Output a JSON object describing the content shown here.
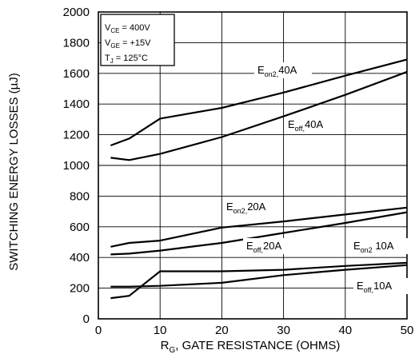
{
  "chart_data": {
    "type": "line",
    "title": "",
    "xlabel": {
      "prefix": "R",
      "sub": "G",
      "rest": ", GATE RESISTANCE (OHMS)"
    },
    "ylabel": "SWITCHING ENERGY LOSSES (µJ)",
    "xlim": [
      0,
      50
    ],
    "ylim": [
      0,
      2000
    ],
    "xticks": [
      0,
      10,
      20,
      30,
      40,
      50
    ],
    "yticks": [
      0,
      200,
      400,
      600,
      800,
      1000,
      1200,
      1400,
      1600,
      1800,
      2000
    ],
    "grid": true,
    "conditions": [
      {
        "main": "V",
        "sub": "CE",
        "rest": " = 400V"
      },
      {
        "main": "V",
        "sub": "GE",
        "rest": " = +15V"
      },
      {
        "main": "T",
        "sub": "J",
        "rest": " = 125°C"
      }
    ],
    "series": [
      {
        "name": "Eon2,40A",
        "label": {
          "main": "E",
          "sub": "on2,",
          "rest": "40A"
        },
        "x": [
          2,
          5,
          10,
          20,
          30,
          40,
          50
        ],
        "y": [
          1130,
          1175,
          1305,
          1375,
          1475,
          1585,
          1690
        ]
      },
      {
        "name": "Eoff,40A",
        "label": {
          "main": "E",
          "sub": "off,",
          "rest": "40A"
        },
        "x": [
          2,
          5,
          10,
          20,
          30,
          40,
          50
        ],
        "y": [
          1050,
          1035,
          1075,
          1185,
          1320,
          1460,
          1610
        ]
      },
      {
        "name": "Eon2,20A",
        "label": {
          "main": "E",
          "sub": "on2,",
          "rest": "20A"
        },
        "x": [
          2,
          5,
          10,
          20,
          30,
          40,
          50
        ],
        "y": [
          470,
          495,
          510,
          595,
          635,
          680,
          725
        ]
      },
      {
        "name": "Eoff,20A",
        "label": {
          "main": "E",
          "sub": "off,",
          "rest": "20A"
        },
        "x": [
          2,
          5,
          10,
          20,
          30,
          40,
          50
        ],
        "y": [
          420,
          425,
          445,
          495,
          560,
          625,
          695
        ]
      },
      {
        "name": "Eon2,10A",
        "label": {
          "main": "E",
          "sub": "on2",
          "rest": " 10A"
        },
        "x": [
          2,
          5,
          10,
          20,
          30,
          40,
          50
        ],
        "y": [
          210,
          210,
          215,
          235,
          285,
          320,
          350
        ]
      },
      {
        "name": "Eoff,10A",
        "label": {
          "main": "E",
          "sub": "off,",
          "rest": "10A"
        },
        "x": [
          2,
          5,
          10,
          20,
          30,
          40,
          50
        ],
        "y": [
          135,
          150,
          310,
          310,
          320,
          345,
          365
        ]
      }
    ]
  }
}
